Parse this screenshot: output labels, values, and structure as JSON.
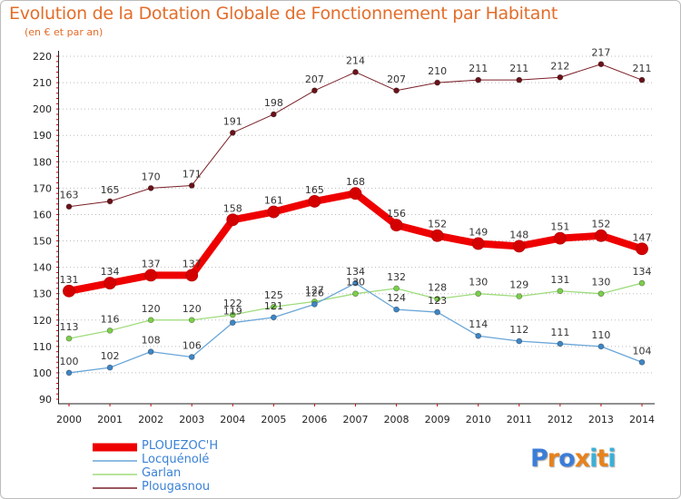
{
  "header": {
    "title": "Evolution de la Dotation Globale de Fonctionnement par Habitant",
    "subtitle": "(en € et par an)"
  },
  "colors": {
    "title": "#e36d2a",
    "grid": "#bbbbbb"
  },
  "logo": {
    "text": "Proxiti",
    "letters": [
      "P",
      "r",
      "o",
      "x",
      "i",
      "t",
      "i"
    ],
    "letter_colors": [
      "#3b7dd8",
      "#e8821c",
      "#3b7dd8",
      "#e8821c",
      "#3bb0d8",
      "#e8821c",
      "#3bb0d8"
    ]
  },
  "chart_data": {
    "type": "line",
    "title": "Evolution de la Dotation Globale de Fonctionnement par Habitant",
    "subtitle": "(en € et par an)",
    "xlabel": "",
    "ylabel": "",
    "x": [
      2000,
      2001,
      2002,
      2003,
      2004,
      2005,
      2006,
      2007,
      2008,
      2009,
      2010,
      2011,
      2012,
      2013,
      2014
    ],
    "ylim": [
      90,
      220
    ],
    "yticks": [
      90,
      100,
      110,
      120,
      130,
      140,
      150,
      160,
      170,
      180,
      190,
      200,
      210,
      220
    ],
    "grid": "horizontal-dotted",
    "legend_position": "bottom-left",
    "series": [
      {
        "name": "Plougasnou",
        "color": "#7b1f28",
        "marker": "#6a1219",
        "width": 1,
        "values": [
          163,
          165,
          170,
          171,
          191,
          198,
          207,
          214,
          207,
          210,
          211,
          211,
          212,
          217,
          211
        ]
      },
      {
        "name": "Garlan",
        "color": "#9edc7b",
        "marker": "#7ccf4a",
        "width": 1.3,
        "values": [
          113,
          116,
          120,
          120,
          122,
          125,
          127,
          130,
          132,
          128,
          130,
          129,
          131,
          130,
          134
        ]
      },
      {
        "name": "Locquénolé",
        "color": "#6aa6d8",
        "marker": "#3d86c6",
        "width": 1.3,
        "values": [
          100,
          102,
          108,
          106,
          119,
          121,
          126,
          134,
          124,
          123,
          114,
          112,
          111,
          110,
          104
        ]
      },
      {
        "name": "PLOUEZOC'H",
        "color": "#ee0000",
        "marker": "#d40000",
        "width": 8,
        "values": [
          131,
          134,
          137,
          137,
          158,
          161,
          165,
          168,
          156,
          152,
          149,
          148,
          151,
          152,
          147
        ]
      }
    ],
    "legend": [
      {
        "name": "PLOUEZOC'H",
        "color": "#ee0000"
      },
      {
        "name": "Locquénolé",
        "color": "#6aa6d8"
      },
      {
        "name": "Garlan",
        "color": "#9edc7b"
      },
      {
        "name": "Plougasnou",
        "color": "#7b1f28"
      }
    ]
  }
}
